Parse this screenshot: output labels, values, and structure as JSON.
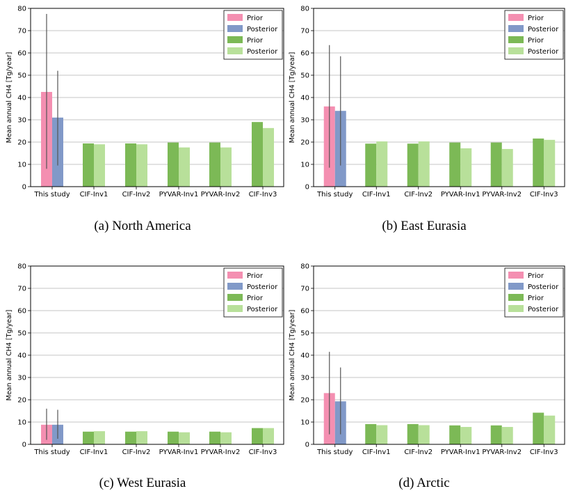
{
  "chart_data": [
    {
      "type": "bar",
      "caption": "(a) North America",
      "ylabel": "Mean annual CH4 [Tg/year]",
      "ylim": [
        0,
        80
      ],
      "yticks": [
        0,
        10,
        20,
        30,
        40,
        50,
        60,
        70,
        80
      ],
      "grid": "horizontal",
      "legend_position": "top-right",
      "legend": [
        {
          "label": "Prior",
          "color": "#f48fb1"
        },
        {
          "label": "Posterior",
          "color": "#8199c8"
        },
        {
          "label": "Prior",
          "color": "#7cb956"
        },
        {
          "label": "Posterior",
          "color": "#b8e09a"
        }
      ],
      "categories": [
        "This study",
        "CIF-Inv1",
        "CIF-Inv2",
        "PYVAR-Inv1",
        "PYVAR-Inv2",
        "CIF-Inv3"
      ],
      "prior": [
        42.5,
        19.4,
        19.4,
        19.8,
        19.8,
        29.0
      ],
      "posterior": [
        31.0,
        19.0,
        19.0,
        17.6,
        17.6,
        26.3
      ],
      "errorbars": {
        "category": "This study",
        "prior": [
          8,
          77.5
        ],
        "posterior": [
          9.5,
          52
        ]
      }
    },
    {
      "type": "bar",
      "caption": "(b) East Eurasia",
      "ylabel": "Mean annual CH4 [Tg/year]",
      "ylim": [
        0,
        80
      ],
      "yticks": [
        0,
        10,
        20,
        30,
        40,
        50,
        60,
        70,
        80
      ],
      "grid": "horizontal",
      "legend_position": "top-right",
      "legend": [
        {
          "label": "Prior",
          "color": "#f48fb1"
        },
        {
          "label": "Posterior",
          "color": "#8199c8"
        },
        {
          "label": "Prior",
          "color": "#7cb956"
        },
        {
          "label": "Posterior",
          "color": "#b8e09a"
        }
      ],
      "categories": [
        "This study",
        "CIF-Inv1",
        "CIF-Inv2",
        "PYVAR-Inv1",
        "PYVAR-Inv2",
        "CIF-Inv3"
      ],
      "prior": [
        36.0,
        19.3,
        19.3,
        19.8,
        19.8,
        21.6
      ],
      "posterior": [
        34.0,
        20.3,
        20.3,
        17.2,
        16.9,
        21.0
      ],
      "errorbars": {
        "category": "This study",
        "prior": [
          8.5,
          63.5
        ],
        "posterior": [
          9.5,
          58.5
        ]
      }
    },
    {
      "type": "bar",
      "caption": "(c) West Eurasia",
      "ylabel": "Mean annual CH4 [Tg/year]",
      "ylim": [
        0,
        80
      ],
      "yticks": [
        0,
        10,
        20,
        30,
        40,
        50,
        60,
        70,
        80
      ],
      "grid": "horizontal",
      "legend_position": "top-right",
      "legend": [
        {
          "label": "Prior",
          "color": "#f48fb1"
        },
        {
          "label": "Posterior",
          "color": "#8199c8"
        },
        {
          "label": "Prior",
          "color": "#7cb956"
        },
        {
          "label": "Posterior",
          "color": "#b8e09a"
        }
      ],
      "categories": [
        "This study",
        "CIF-Inv1",
        "CIF-Inv2",
        "PYVAR-Inv1",
        "PYVAR-Inv2",
        "CIF-Inv3"
      ],
      "prior": [
        8.8,
        5.7,
        5.7,
        5.7,
        5.7,
        7.3
      ],
      "posterior": [
        8.8,
        5.9,
        5.9,
        5.4,
        5.4,
        7.3
      ],
      "errorbars": {
        "category": "This study",
        "prior": [
          2,
          16
        ],
        "posterior": [
          2.5,
          15.5
        ]
      }
    },
    {
      "type": "bar",
      "caption": "(d) Arctic",
      "ylabel": "Mean annual CH4 [Tg/year]",
      "ylim": [
        0,
        80
      ],
      "yticks": [
        0,
        10,
        20,
        30,
        40,
        50,
        60,
        70,
        80
      ],
      "grid": "horizontal",
      "legend_position": "top-right",
      "legend": [
        {
          "label": "Prior",
          "color": "#f48fb1"
        },
        {
          "label": "Posterior",
          "color": "#8199c8"
        },
        {
          "label": "Prior",
          "color": "#7cb956"
        },
        {
          "label": "Posterior",
          "color": "#b8e09a"
        }
      ],
      "categories": [
        "This study",
        "CIF-Inv1",
        "CIF-Inv2",
        "PYVAR-Inv1",
        "PYVAR-Inv2",
        "CIF-Inv3"
      ],
      "prior": [
        23.0,
        9.1,
        9.1,
        8.5,
        8.5,
        14.2
      ],
      "posterior": [
        19.3,
        8.6,
        8.6,
        7.8,
        7.8,
        12.9
      ],
      "errorbars": {
        "category": "This study",
        "prior": [
          4.5,
          41.5
        ],
        "posterior": [
          4.5,
          34.5
        ]
      }
    }
  ]
}
